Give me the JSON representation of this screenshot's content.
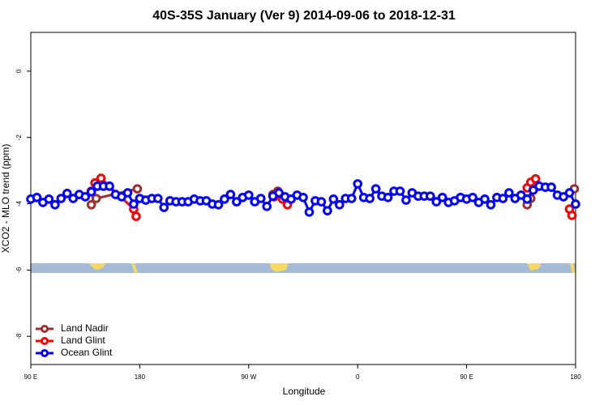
{
  "chart_data": {
    "type": "line",
    "title": "40S-35S January (Ver 9)   2014-09-06 to 2018-12-31",
    "x_label": "Longitude",
    "y_label": "XCO2 - MLO trend (ppm)",
    "xlim": [
      90,
      540
    ],
    "ylim": [
      -8.85,
      1.17
    ],
    "xticks": [
      {
        "value": 90,
        "label": "90 E"
      },
      180,
      {
        "value": 270,
        "label": "90 W"
      },
      {
        "value": 360,
        "label": "0"
      },
      {
        "value": 450,
        "label": "90 E"
      },
      {
        "value": 540,
        "label": "180"
      }
    ],
    "yticks": [
      0,
      -2,
      -4,
      -6,
      -8
    ],
    "legend": "bottom-left",
    "series": [
      {
        "name": "Land Nadir",
        "color": "#a03030",
        "x": [
          140,
          144,
          178,
          null,
          290,
          294,
          null,
          500,
          503,
          null,
          539
        ],
        "values": [
          -4.03,
          -3.84,
          -3.55,
          null,
          -3.72,
          -3.62,
          null,
          -4.03,
          -3.84,
          null,
          -3.55
        ]
      },
      {
        "name": "Land Glint",
        "color": "#ff0000",
        "x": [
          140,
          143,
          148,
          175,
          177,
          null,
          291,
          294,
          298,
          302,
          null,
          500,
          503,
          507,
          null,
          535,
          537
        ],
        "values": [
          -3.62,
          -3.37,
          -3.23,
          -4.16,
          -4.38,
          null,
          -3.79,
          -3.72,
          -3.86,
          -4.03,
          null,
          -3.52,
          -3.35,
          -3.25,
          null,
          -4.16,
          -4.35
        ]
      },
      {
        "name": "Ocean Glint",
        "color": "#0000ff",
        "x": [
          90,
          95,
          100,
          105,
          110,
          115,
          120,
          125,
          130,
          135,
          140,
          145,
          150,
          155,
          160,
          165,
          170,
          175,
          180,
          185,
          190,
          195,
          200,
          205,
          210,
          215,
          220,
          225,
          230,
          235,
          240,
          245,
          250,
          255,
          260,
          265,
          270,
          275,
          280,
          285,
          290,
          295,
          300,
          305,
          310,
          315,
          320,
          325,
          330,
          335,
          340,
          345,
          350,
          355,
          360,
          365,
          370,
          375,
          380,
          385,
          390,
          395,
          400,
          405,
          410,
          415,
          420,
          425,
          430,
          435,
          440,
          445,
          450,
          455,
          460,
          465,
          470,
          475,
          480,
          485,
          490,
          495,
          500,
          505,
          510,
          515,
          520,
          525,
          530,
          535,
          540
        ],
        "values": [
          -3.86,
          -3.81,
          -3.96,
          -3.86,
          -4.03,
          -3.84,
          -3.69,
          -3.84,
          -3.72,
          -3.79,
          -3.64,
          -3.47,
          -3.47,
          -3.47,
          -3.72,
          -3.79,
          -3.67,
          -4.01,
          -3.84,
          -3.89,
          -3.84,
          -3.84,
          -4.11,
          -3.91,
          -3.94,
          -3.94,
          -3.94,
          -3.86,
          -3.91,
          -3.91,
          -4.01,
          -4.03,
          -3.86,
          -3.72,
          -3.94,
          -3.81,
          -3.74,
          -3.94,
          -3.84,
          -4.08,
          -3.77,
          -3.67,
          -3.79,
          -3.86,
          -3.74,
          -3.81,
          -4.25,
          -3.91,
          -3.94,
          -4.21,
          -3.86,
          -4.03,
          -3.84,
          -3.84,
          -3.4,
          -3.81,
          -3.84,
          -3.55,
          -3.77,
          -3.81,
          -3.62,
          -3.62,
          -3.89,
          -3.67,
          -3.77,
          -3.77,
          -3.77,
          -3.94,
          -3.81,
          -3.96,
          -3.91,
          -3.81,
          -3.86,
          -3.81,
          -3.96,
          -3.86,
          -4.03,
          -3.81,
          -3.84,
          -3.67,
          -3.84,
          -3.74,
          -3.86,
          -3.59,
          -3.47,
          -3.5,
          -3.5,
          -3.74,
          -3.79,
          -3.67,
          -4.01
        ]
      }
    ]
  }
}
